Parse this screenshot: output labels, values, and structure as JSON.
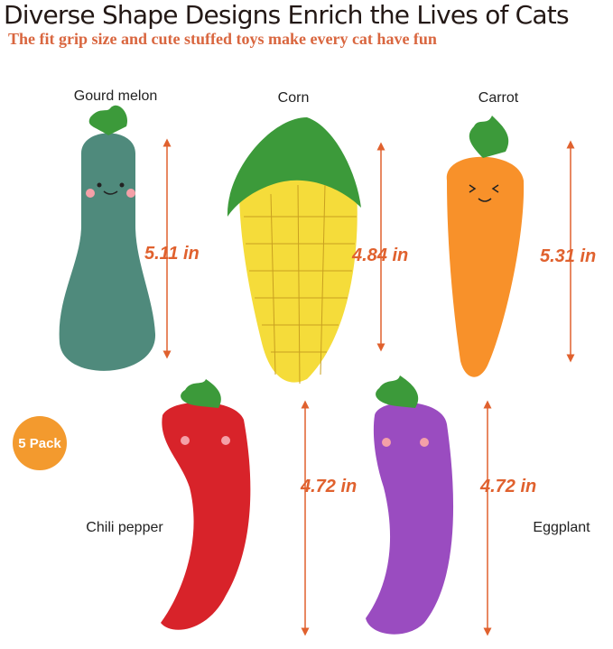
{
  "title": "Diverse Shape Designs Enrich the Lives of Cats",
  "subtitle": "The fit grip size and cute stuffed toys make every cat have fun",
  "badge": "5 Pack",
  "toys": [
    {
      "name": "Gourd melon",
      "size": "5.11 in",
      "color": "#4f8a7c"
    },
    {
      "name": "Corn",
      "size": "4.84 in",
      "color": "#f5dc3a"
    },
    {
      "name": "Carrot",
      "size": "5.31 in",
      "color": "#f8912a"
    },
    {
      "name": "Chili pepper",
      "size": "4.72 in",
      "color": "#d8232a"
    },
    {
      "name": "Eggplant",
      "size": "4.72 in",
      "color": "#9a4cc0"
    }
  ],
  "colors": {
    "accent": "#e0612e",
    "leaf": "#3c9a3a",
    "badge": "#f39a2e"
  }
}
